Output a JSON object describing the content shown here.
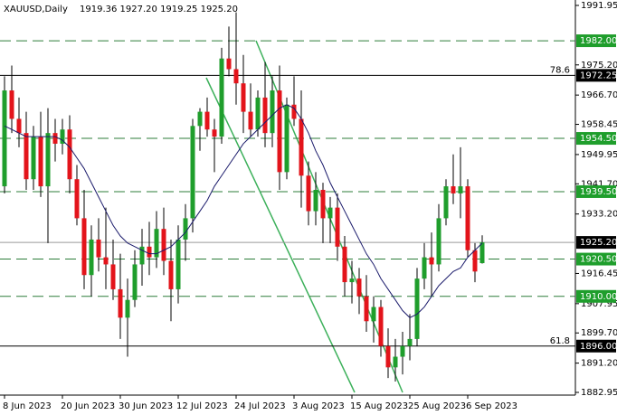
{
  "chart_data": {
    "type": "candlestick",
    "title": "XAUUSD,Daily",
    "title_values": "1919.36 1927.20 1919.25 1925.20",
    "categories": [
      "8 Jun 2023",
      null,
      null,
      null,
      null,
      null,
      null,
      null,
      "20 Jun 2023",
      null,
      null,
      null,
      null,
      null,
      null,
      null,
      "30 Jun 2023",
      null,
      null,
      null,
      null,
      null,
      null,
      null,
      "12 Jul 2023",
      null,
      null,
      null,
      null,
      null,
      null,
      null,
      "24 Jul 2023",
      null,
      null,
      null,
      null,
      null,
      null,
      null,
      "3 Aug 2023",
      null,
      null,
      null,
      null,
      null,
      null,
      null,
      "15 Aug 2023",
      null,
      null,
      null,
      null,
      null,
      null,
      null,
      "25 Aug 2023",
      null,
      null,
      null,
      null,
      null,
      null,
      null,
      "6 Sep 2023",
      null,
      null
    ],
    "ohlc": [
      [
        1941,
        1972,
        1939,
        1968
      ],
      [
        1968,
        1975,
        1956,
        1960
      ],
      [
        1960,
        1966,
        1952,
        1956
      ],
      [
        1956,
        1962,
        1940,
        1943
      ],
      [
        1943,
        1958,
        1940,
        1955
      ],
      [
        1955,
        1962,
        1938,
        1941
      ],
      [
        1941,
        1963,
        1925,
        1956
      ],
      [
        1956,
        1960,
        1948,
        1953
      ],
      [
        1953,
        1960,
        1950,
        1957
      ],
      [
        1957,
        1961,
        1939,
        1943
      ],
      [
        1943,
        1947,
        1930,
        1932
      ],
      [
        1932,
        1940,
        1912,
        1916
      ],
      [
        1916,
        1930,
        1910,
        1926
      ],
      [
        1926,
        1932,
        1917,
        1921
      ],
      [
        1921,
        1935,
        1912,
        1919
      ],
      [
        1919,
        1926,
        1909,
        1912
      ],
      [
        1912,
        1922,
        1898,
        1904
      ],
      [
        1904,
        1915,
        1893,
        1909
      ],
      [
        1909,
        1923,
        1907,
        1919
      ],
      [
        1919,
        1929,
        1913,
        1924
      ],
      [
        1924,
        1931,
        1916,
        1921
      ],
      [
        1921,
        1934,
        1918,
        1929
      ],
      [
        1929,
        1935,
        1916,
        1920
      ],
      [
        1920,
        1926,
        1903,
        1912
      ],
      [
        1912,
        1930,
        1908,
        1926
      ],
      [
        1926,
        1936,
        1920,
        1932
      ],
      [
        1932,
        1960,
        1928,
        1958
      ],
      [
        1958,
        1963,
        1951,
        1962
      ],
      [
        1962,
        1966,
        1955,
        1957
      ],
      [
        1957,
        1960,
        1945,
        1955
      ],
      [
        1955,
        1980,
        1953,
        1977
      ],
      [
        1977,
        1986,
        1972,
        1974
      ],
      [
        1974,
        1990,
        1964,
        1970
      ],
      [
        1970,
        1978,
        1956,
        1962
      ],
      [
        1962,
        1970,
        1955,
        1957
      ],
      [
        1957,
        1968,
        1955,
        1966
      ],
      [
        1966,
        1976,
        1952,
        1956
      ],
      [
        1956,
        1972,
        1952,
        1968
      ],
      [
        1968,
        1975,
        1940,
        1945
      ],
      [
        1945,
        1966,
        1943,
        1964
      ],
      [
        1964,
        1972,
        1958,
        1960
      ],
      [
        1960,
        1968,
        1935,
        1944
      ],
      [
        1944,
        1948,
        1930,
        1934
      ],
      [
        1934,
        1945,
        1930,
        1940
      ],
      [
        1940,
        1942,
        1925,
        1932
      ],
      [
        1932,
        1938,
        1925,
        1935
      ],
      [
        1935,
        1939,
        1920,
        1924
      ],
      [
        1924,
        1927,
        1910,
        1914
      ],
      [
        1914,
        1920,
        1908,
        1915
      ],
      [
        1915,
        1918,
        1905,
        1910
      ],
      [
        1910,
        1916,
        1900,
        1903
      ],
      [
        1903,
        1910,
        1897,
        1907
      ],
      [
        1907,
        1909,
        1893,
        1896
      ],
      [
        1896,
        1901,
        1887,
        1890
      ],
      [
        1890,
        1898,
        1886,
        1893
      ],
      [
        1893,
        1900,
        1888,
        1896
      ],
      [
        1896,
        1905,
        1892,
        1898
      ],
      [
        1898,
        1918,
        1896,
        1915
      ],
      [
        1915,
        1925,
        1912,
        1921
      ],
      [
        1921,
        1928,
        1910,
        1919
      ],
      [
        1919,
        1936,
        1917,
        1932
      ],
      [
        1932,
        1943,
        1930,
        1941
      ],
      [
        1941,
        1950,
        1936,
        1939
      ],
      [
        1939,
        1952,
        1932,
        1941
      ],
      [
        1941,
        1943,
        1921,
        1923
      ],
      [
        1923,
        1925,
        1914,
        1917
      ],
      [
        1919.36,
        1927.2,
        1919.25,
        1925.2
      ]
    ],
    "up_color": "#1f9e2c",
    "down_color": "#e3141b",
    "ma": {
      "color": "#1b1b6b",
      "values": [
        1958,
        1957,
        1956,
        1955,
        1955,
        1955,
        1955,
        1955,
        1954,
        1952,
        1949,
        1946,
        1942,
        1938,
        1934,
        1930,
        1927,
        1925,
        1924,
        1923,
        1922,
        1922,
        1923,
        1924,
        1926,
        1928,
        1931,
        1934,
        1937,
        1941,
        1944,
        1947,
        1950,
        1953,
        1955,
        1957,
        1959,
        1961,
        1963,
        1964,
        1963,
        1960,
        1956,
        1951,
        1947,
        1942,
        1938,
        1934,
        1930,
        1926,
        1922,
        1919,
        1915,
        1912,
        1909,
        1906,
        1904,
        1905,
        1907,
        1910,
        1913,
        1915,
        1917,
        1918,
        1921,
        1923,
        1925
      ]
    },
    "ylim": [
      1882.95,
      1991.95
    ],
    "yticks": [
      1991.95,
      {
        "value": 1975.2,
        "label": "1975.20"
      },
      {
        "value": 1966.7,
        "label": "1966.70"
      },
      1958.45,
      1949.95,
      {
        "value": 1941.7,
        "label": "1941.70"
      },
      {
        "value": 1933.2,
        "label": "1933.20"
      },
      1916.45,
      1907.95,
      {
        "value": 1899.7,
        "label": "1899.70"
      },
      {
        "value": 1891.2,
        "label": "1891.20"
      },
      1882.95
    ],
    "levels": [
      {
        "value": 1982,
        "label": "1982.00",
        "style": "dashed",
        "color": "#2d7d3a"
      },
      {
        "value": 1972.25,
        "label": "1972.25",
        "style": "solid",
        "color": "#000000",
        "fib": "78.6"
      },
      {
        "value": 1954.5,
        "label": "1954.50",
        "style": "dashed",
        "color": "#2d7d3a"
      },
      {
        "value": 1939.5,
        "label": "1939.50",
        "style": "dashed",
        "color": "#2d7d3a"
      },
      {
        "value": 1925.2,
        "label": "1925.20",
        "style": "current",
        "color": "#000000"
      },
      {
        "value": 1920.5,
        "label": "1920.50",
        "style": "dashed",
        "color": "#2d7d3a"
      },
      {
        "value": 1910,
        "label": "1910.00",
        "style": "dashed",
        "color": "#2d7d3a"
      },
      {
        "value": 1896,
        "label": "1896.00",
        "style": "solid",
        "color": "#000000",
        "fib": "61.8"
      }
    ]
  }
}
